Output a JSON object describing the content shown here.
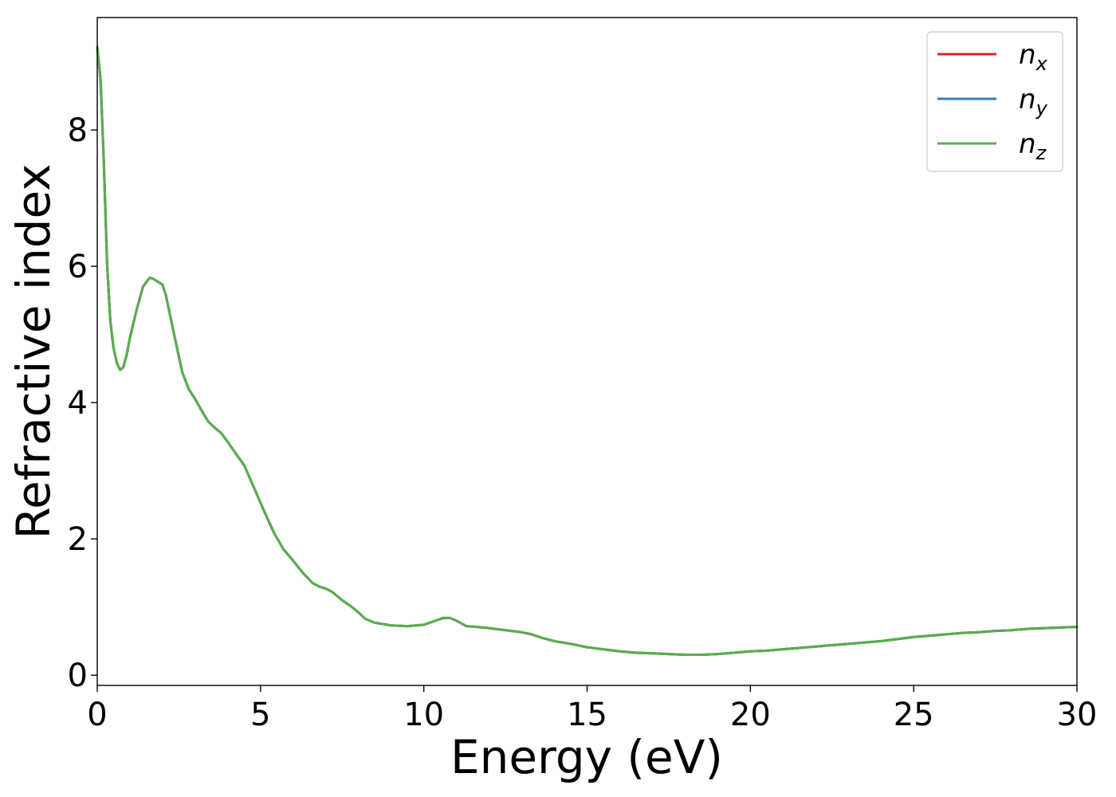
{
  "chart_data": {
    "type": "line",
    "xlabel": "Energy (eV)",
    "ylabel": "Refractive index",
    "xlim": [
      0,
      30
    ],
    "ylim": [
      -0.15,
      9.65
    ],
    "xticks": [
      0,
      5,
      10,
      15,
      20,
      25,
      30
    ],
    "yticks": [
      0,
      2,
      4,
      6,
      8
    ],
    "xtick_labels": [
      "0",
      "5",
      "10",
      "15",
      "20",
      "25",
      "30"
    ],
    "ytick_labels": [
      "0",
      "2",
      "4",
      "6",
      "8"
    ],
    "grid": false,
    "legend_position": "top-right",
    "x": [
      0,
      0.1,
      0.2,
      0.3,
      0.4,
      0.5,
      0.6,
      0.7,
      0.8,
      0.9,
      1.0,
      1.2,
      1.4,
      1.6,
      1.7,
      1.8,
      2.0,
      2.1,
      2.2,
      2.4,
      2.6,
      2.8,
      3.0,
      3.2,
      3.4,
      3.6,
      3.8,
      4.0,
      4.2,
      4.5,
      4.8,
      5.1,
      5.4,
      5.7,
      6.0,
      6.3,
      6.6,
      6.8,
      7.0,
      7.2,
      7.5,
      7.8,
      8.0,
      8.2,
      8.5,
      9.0,
      9.5,
      10.0,
      10.3,
      10.6,
      10.8,
      11.0,
      11.3,
      11.6,
      12.0,
      12.5,
      13.0,
      13.3,
      13.6,
      14.0,
      14.5,
      15.0,
      15.5,
      16.0,
      16.5,
      17.0,
      17.5,
      18.0,
      18.5,
      19.0,
      19.5,
      20.0,
      20.5,
      21.0,
      21.5,
      22.0,
      22.5,
      23.0,
      23.5,
      24.0,
      24.5,
      25.0,
      25.5,
      26.0,
      26.5,
      27.0,
      27.5,
      28.0,
      28.5,
      29.0,
      29.5,
      30.0
    ],
    "series": [
      {
        "name": "n_x",
        "color": "#d62728",
        "values": [
          9.22,
          8.75,
          7.55,
          6.05,
          5.2,
          4.8,
          4.58,
          4.48,
          4.52,
          4.7,
          4.95,
          5.35,
          5.7,
          5.83,
          5.82,
          5.79,
          5.73,
          5.58,
          5.35,
          4.9,
          4.45,
          4.2,
          4.05,
          3.88,
          3.72,
          3.63,
          3.55,
          3.42,
          3.28,
          3.08,
          2.75,
          2.42,
          2.1,
          1.85,
          1.68,
          1.5,
          1.35,
          1.3,
          1.27,
          1.22,
          1.1,
          1.0,
          0.92,
          0.83,
          0.77,
          0.73,
          0.72,
          0.74,
          0.79,
          0.84,
          0.84,
          0.8,
          0.72,
          0.71,
          0.69,
          0.66,
          0.63,
          0.6,
          0.55,
          0.5,
          0.46,
          0.41,
          0.38,
          0.35,
          0.33,
          0.32,
          0.31,
          0.3,
          0.3,
          0.31,
          0.33,
          0.35,
          0.36,
          0.38,
          0.4,
          0.42,
          0.44,
          0.46,
          0.48,
          0.5,
          0.53,
          0.56,
          0.58,
          0.6,
          0.62,
          0.63,
          0.65,
          0.66,
          0.68,
          0.69,
          0.7,
          0.71
        ]
      },
      {
        "name": "n_y",
        "color": "#377eb8",
        "values": [
          9.22,
          8.75,
          7.55,
          6.05,
          5.2,
          4.8,
          4.58,
          4.48,
          4.52,
          4.7,
          4.95,
          5.35,
          5.7,
          5.83,
          5.82,
          5.79,
          5.73,
          5.58,
          5.35,
          4.9,
          4.45,
          4.2,
          4.05,
          3.88,
          3.72,
          3.63,
          3.55,
          3.42,
          3.28,
          3.08,
          2.75,
          2.42,
          2.1,
          1.85,
          1.68,
          1.5,
          1.35,
          1.3,
          1.27,
          1.22,
          1.1,
          1.0,
          0.92,
          0.83,
          0.77,
          0.73,
          0.72,
          0.74,
          0.79,
          0.84,
          0.84,
          0.8,
          0.72,
          0.71,
          0.69,
          0.66,
          0.63,
          0.6,
          0.55,
          0.5,
          0.46,
          0.41,
          0.38,
          0.35,
          0.33,
          0.32,
          0.31,
          0.3,
          0.3,
          0.31,
          0.33,
          0.35,
          0.36,
          0.38,
          0.4,
          0.42,
          0.44,
          0.46,
          0.48,
          0.5,
          0.53,
          0.56,
          0.58,
          0.6,
          0.62,
          0.63,
          0.65,
          0.66,
          0.68,
          0.69,
          0.7,
          0.71
        ]
      },
      {
        "name": "n_z",
        "color": "#5aad4e",
        "values": [
          9.22,
          8.75,
          7.55,
          6.05,
          5.2,
          4.8,
          4.58,
          4.48,
          4.52,
          4.7,
          4.95,
          5.35,
          5.7,
          5.83,
          5.82,
          5.79,
          5.73,
          5.58,
          5.35,
          4.9,
          4.45,
          4.2,
          4.05,
          3.88,
          3.72,
          3.63,
          3.55,
          3.42,
          3.28,
          3.08,
          2.75,
          2.42,
          2.1,
          1.85,
          1.68,
          1.5,
          1.35,
          1.3,
          1.27,
          1.22,
          1.1,
          1.0,
          0.92,
          0.83,
          0.77,
          0.73,
          0.72,
          0.74,
          0.79,
          0.84,
          0.84,
          0.8,
          0.72,
          0.71,
          0.69,
          0.66,
          0.63,
          0.6,
          0.55,
          0.5,
          0.46,
          0.41,
          0.38,
          0.35,
          0.33,
          0.32,
          0.31,
          0.3,
          0.3,
          0.31,
          0.33,
          0.35,
          0.36,
          0.38,
          0.4,
          0.42,
          0.44,
          0.46,
          0.48,
          0.5,
          0.53,
          0.56,
          0.58,
          0.6,
          0.62,
          0.63,
          0.65,
          0.66,
          0.68,
          0.69,
          0.7,
          0.71
        ]
      }
    ],
    "legend": [
      {
        "base": "n",
        "sub": "x",
        "color": "#d62728"
      },
      {
        "base": "n",
        "sub": "y",
        "color": "#377eb8"
      },
      {
        "base": "n",
        "sub": "z",
        "color": "#5aad4e"
      }
    ]
  }
}
